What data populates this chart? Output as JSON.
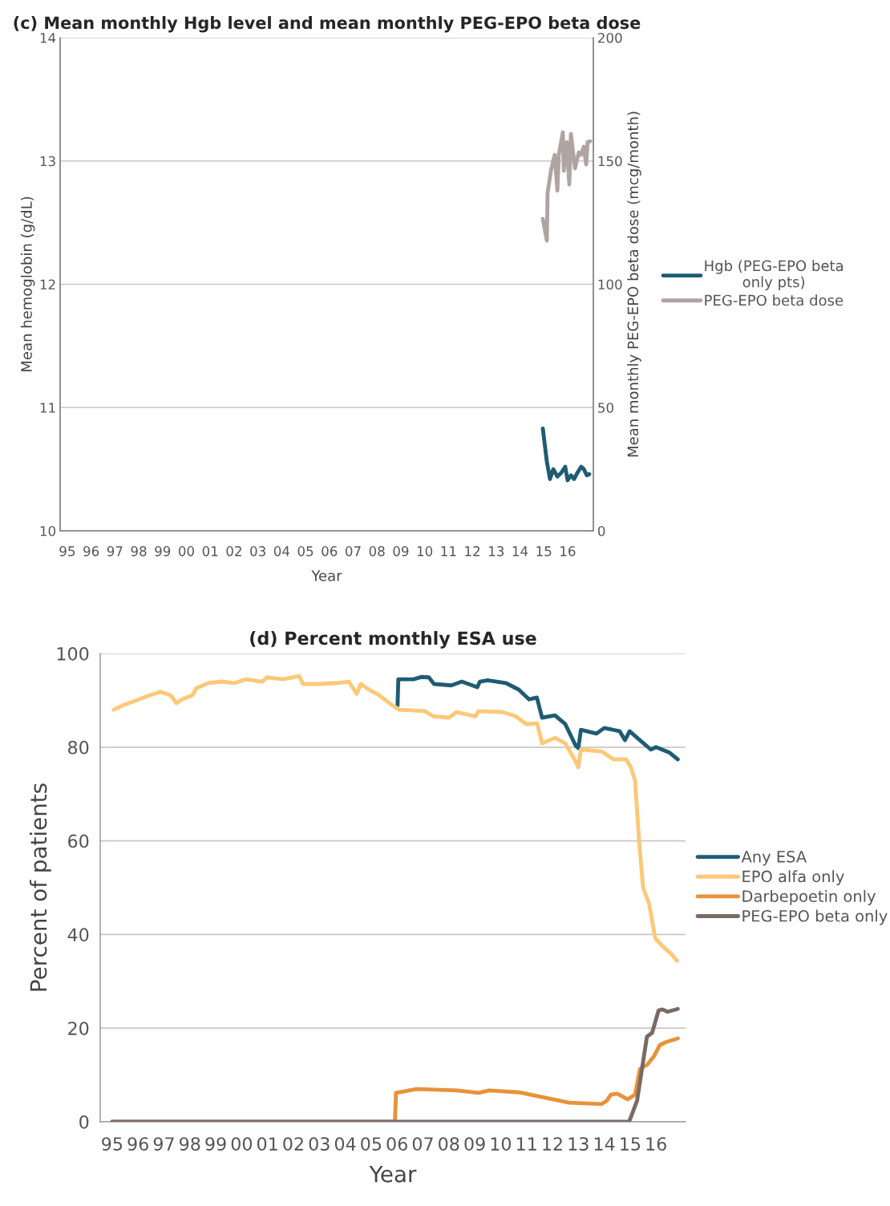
{
  "chart_data": [
    {
      "type": "line",
      "title": "(c) Mean monthly Hgb level and mean monthly PEG-EPO beta dose",
      "xlabel": "Year",
      "ylabel": "Mean hemoglobin (g/dL)",
      "y2label": "Mean monthly PEG-EPO beta dose (mcg/month)",
      "xlim": [
        1994.7,
        2017.08
      ],
      "ylim": [
        10,
        14
      ],
      "y2lim": [
        0,
        200
      ],
      "yticks": [
        10,
        11,
        12,
        13,
        14
      ],
      "y2ticks": [
        0,
        50,
        100,
        150,
        200
      ],
      "xticks": [
        {
          "value": 1995,
          "label": "95"
        },
        {
          "value": 1996,
          "label": "96"
        },
        {
          "value": 1997,
          "label": "97"
        },
        {
          "value": 1998,
          "label": "98"
        },
        {
          "value": 1999,
          "label": "99"
        },
        {
          "value": 2000,
          "label": "00"
        },
        {
          "value": 2001,
          "label": "01"
        },
        {
          "value": 2002,
          "label": "02"
        },
        {
          "value": 2003,
          "label": "03"
        },
        {
          "value": 2004,
          "label": "04"
        },
        {
          "value": 2005,
          "label": "05"
        },
        {
          "value": 2006,
          "label": "06"
        },
        {
          "value": 2007,
          "label": "07"
        },
        {
          "value": 2008,
          "label": "08"
        },
        {
          "value": 2009,
          "label": "09"
        },
        {
          "value": 2010,
          "label": "10"
        },
        {
          "value": 2011,
          "label": "11"
        },
        {
          "value": 2012,
          "label": "12"
        },
        {
          "value": 2013,
          "label": "13"
        },
        {
          "value": 2014,
          "label": "14"
        },
        {
          "value": 2015,
          "label": "15"
        },
        {
          "value": 2016,
          "label": "16"
        }
      ],
      "grid": "y",
      "legend": "right",
      "series": [
        {
          "name": "Hgb (PEG-EPO beta\nonly pts)",
          "color": "#1f5c73",
          "x": [
            2014.96,
            2015.13,
            2015.26,
            2015.4,
            2015.57,
            2015.73,
            2015.9,
            2016.0,
            2016.14,
            2016.27,
            2016.41,
            2016.57,
            2016.68,
            2016.81,
            2016.91
          ],
          "values": [
            10.83,
            10.56,
            10.42,
            10.5,
            10.44,
            10.47,
            10.52,
            10.41,
            10.45,
            10.42,
            10.47,
            10.52,
            10.5,
            10.45,
            10.46
          ]
        },
        {
          "name": "PEG-EPO beta dose",
          "color": "#b0a4a2",
          "axis": "y2",
          "x": [
            2014.96,
            2015.13,
            2015.16,
            2015.3,
            2015.46,
            2015.57,
            2015.63,
            2015.8,
            2015.84,
            2015.97,
            2016.07,
            2016.14,
            2016.31,
            2016.47,
            2016.57,
            2016.68,
            2016.78,
            2016.84,
            2016.95
          ],
          "values": [
            126.5,
            117.7,
            137,
            146,
            152.5,
            138,
            152.5,
            161.6,
            146,
            157.7,
            140.5,
            161,
            147,
            153.5,
            152.5,
            155.8,
            148.6,
            157.7,
            158
          ]
        }
      ]
    },
    {
      "type": "line",
      "title": "(d) Percent monthly ESA use",
      "xlabel": "Year",
      "ylabel": "Percent of patients",
      "xlim": [
        1994.54,
        2017.14
      ],
      "ylim": [
        0,
        100
      ],
      "yticks": [
        0,
        20,
        40,
        60,
        80,
        100
      ],
      "xticks": [
        {
          "value": 1995,
          "label": "95"
        },
        {
          "value": 1996,
          "label": "96"
        },
        {
          "value": 1997,
          "label": "97"
        },
        {
          "value": 1998,
          "label": "98"
        },
        {
          "value": 1999,
          "label": "99"
        },
        {
          "value": 2000,
          "label": "00"
        },
        {
          "value": 2001,
          "label": "01"
        },
        {
          "value": 2002,
          "label": "02"
        },
        {
          "value": 2003,
          "label": "03"
        },
        {
          "value": 2004,
          "label": "04"
        },
        {
          "value": 2005,
          "label": "05"
        },
        {
          "value": 2006,
          "label": "06"
        },
        {
          "value": 2007,
          "label": "07"
        },
        {
          "value": 2008,
          "label": "08"
        },
        {
          "value": 2009,
          "label": "09"
        },
        {
          "value": 2010,
          "label": "10"
        },
        {
          "value": 2011,
          "label": "11"
        },
        {
          "value": 2012,
          "label": "12"
        },
        {
          "value": 2013,
          "label": "13"
        },
        {
          "value": 2014,
          "label": "14"
        },
        {
          "value": 2015,
          "label": "15"
        },
        {
          "value": 2016,
          "label": "16"
        }
      ],
      "grid": "y",
      "legend": "right",
      "series": [
        {
          "name": "Any ESA",
          "color": "#1f5c73",
          "x": [
            2006.02,
            2006.05,
            2006.64,
            2006.95,
            2007.23,
            2007.43,
            2008.1,
            2008.5,
            2009.1,
            2009.2,
            2009.5,
            2010.2,
            2010.7,
            2011.1,
            2011.4,
            2011.6,
            2012.1,
            2012.5,
            2012.9,
            2013.0,
            2013.1,
            2013.7,
            2014.0,
            2014.6,
            2014.8,
            2014.98,
            2015.38,
            2015.8,
            2016.0,
            2016.5,
            2016.84
          ],
          "values": [
            88.9,
            94.5,
            94.5,
            95.0,
            94.9,
            93.5,
            93.2,
            94.0,
            92.8,
            94.0,
            94.3,
            93.7,
            92.3,
            90.2,
            90.6,
            86.3,
            86.8,
            84.9,
            80.3,
            79.8,
            83.7,
            82.9,
            84.1,
            83.4,
            81.5,
            83.4,
            81.5,
            79.5,
            80.0,
            78.9,
            77.4
          ]
        },
        {
          "name": "EPO alfa only",
          "color": "#fdc878",
          "x": [
            1995.06,
            1995.4,
            1995.99,
            1996.45,
            1996.86,
            1997.26,
            1997.48,
            1997.69,
            1998.1,
            1998.25,
            1998.72,
            1999.24,
            1999.74,
            2000.17,
            2000.79,
            2000.98,
            2001.6,
            2002.22,
            2002.37,
            2003.05,
            2003.67,
            2004.14,
            2004.44,
            2004.6,
            2004.91,
            2005.31,
            2005.75,
            2006.09,
            2007.08,
            2007.4,
            2008.0,
            2008.3,
            2009.03,
            2009.14,
            2010.07,
            2010.58,
            2011.0,
            2011.41,
            2011.6,
            2012.1,
            2012.5,
            2012.9,
            2013.0,
            2013.1,
            2013.9,
            2014.35,
            2014.85,
            2015.03,
            2015.19,
            2015.35,
            2015.5,
            2015.73,
            2015.97,
            2016.25,
            2016.6,
            2016.81
          ],
          "values": [
            88.0,
            88.9,
            90.1,
            91.1,
            91.8,
            91.1,
            89.4,
            90.2,
            91.1,
            92.6,
            93.7,
            94.0,
            93.7,
            94.5,
            94.0,
            94.9,
            94.5,
            95.2,
            93.5,
            93.5,
            93.7,
            94.0,
            91.4,
            93.5,
            92.3,
            91.1,
            89.2,
            88.0,
            87.7,
            86.6,
            86.3,
            87.5,
            86.6,
            87.7,
            87.5,
            86.6,
            84.9,
            85.1,
            80.8,
            82.0,
            80.8,
            76.9,
            75.7,
            79.5,
            79.1,
            77.4,
            77.4,
            75.7,
            72.9,
            59.8,
            50.0,
            46.6,
            39.2,
            37.5,
            35.8,
            34.4
          ]
        },
        {
          "name": "Darbepoetin only",
          "color": "#e8923a",
          "x": [
            1995.0,
            2005.92,
            2005.96,
            2006.77,
            2008.31,
            2009.15,
            2009.55,
            2010.7,
            2011.41,
            2012.65,
            2013.89,
            2014.1,
            2014.26,
            2014.5,
            2014.9,
            2015.19,
            2015.38,
            2015.66,
            2015.91,
            2016.15,
            2016.37,
            2016.84
          ],
          "values": [
            0,
            0,
            6.2,
            7.0,
            6.7,
            6.2,
            6.7,
            6.3,
            5.5,
            4.1,
            3.8,
            4.5,
            5.8,
            6.0,
            4.8,
            5.8,
            11.3,
            12.2,
            13.9,
            16.4,
            17.0,
            17.8
          ]
        },
        {
          "name": "PEG-EPO beta only",
          "color": "#7a6a66",
          "x": [
            1995.0,
            2014.96,
            2015.27,
            2015.65,
            2015.85,
            2016.1,
            2016.25,
            2016.45,
            2016.84
          ],
          "values": [
            0,
            0,
            4.5,
            18.2,
            19.0,
            23.8,
            24.0,
            23.5,
            24.1
          ]
        }
      ]
    }
  ]
}
